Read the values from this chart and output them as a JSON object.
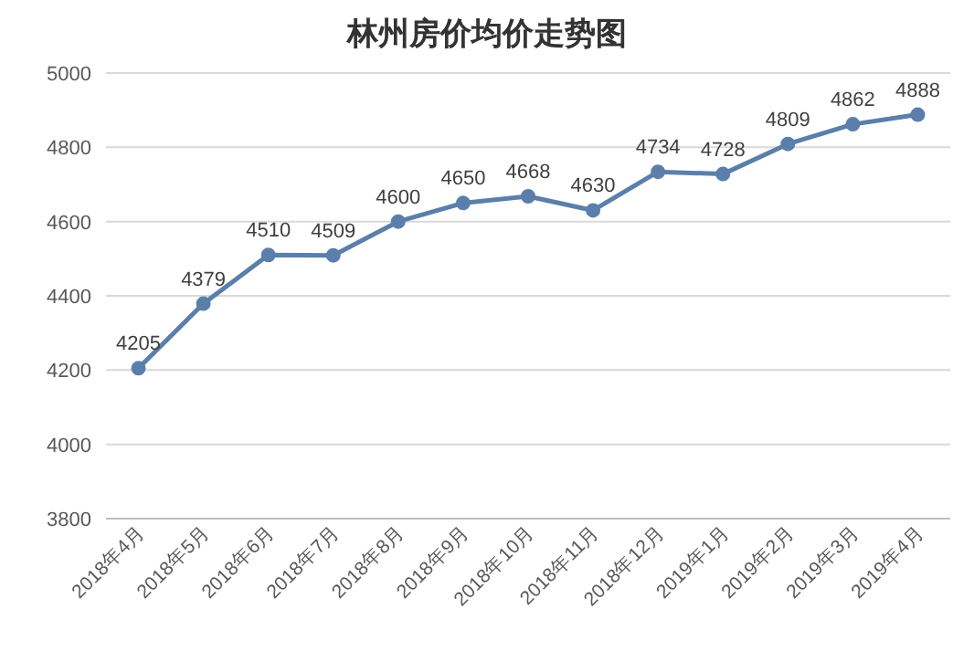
{
  "chart_data": {
    "type": "line",
    "title": "林州房价均价走势图",
    "categories": [
      "2018年4月",
      "2018年5月",
      "2018年6月",
      "2018年7月",
      "2018年8月",
      "2018年9月",
      "2018年10月",
      "2018年11月",
      "2018年12月",
      "2019年1月",
      "2019年2月",
      "2019年3月",
      "2019年4月"
    ],
    "values": [
      4205,
      4379,
      4510,
      4509,
      4600,
      4650,
      4668,
      4630,
      4734,
      4728,
      4809,
      4862,
      4888
    ],
    "color": "#5b7faa",
    "ylim": [
      3800,
      5000
    ],
    "yticks": [
      3800,
      4000,
      4200,
      4400,
      4600,
      4800,
      5000
    ],
    "grid": "y",
    "marker": "circle",
    "line_style": "solid",
    "data_labels": true
  }
}
